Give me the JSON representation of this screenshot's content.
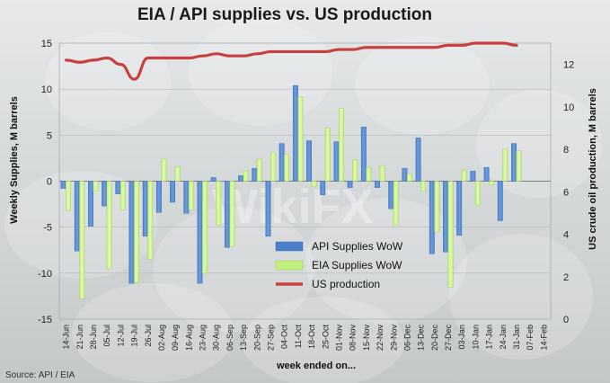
{
  "chart_data": {
    "type": "bar",
    "title": "EIA / API supplies vs. US production",
    "xlabel": "week ended on...",
    "ylabel_left": "Weekly Supplies, M barrels",
    "ylabel_right": "US crude oil production, M barrels",
    "ylim_left": [
      -15,
      15
    ],
    "ylim_right": [
      0,
      13
    ],
    "yticks_left": [
      "15",
      "10",
      "5",
      "0",
      "-5",
      "-10",
      "-15"
    ],
    "yticks_right": [
      "12",
      "10",
      "8",
      "6",
      "4",
      "2",
      "0"
    ],
    "source": "Source: API / EIA",
    "legend_position": "lower-center",
    "categories": [
      "14-Jun",
      "21-Jun",
      "28-Jun",
      "05-Jul",
      "12-Jul",
      "19-Jul",
      "26-Jul",
      "02-Aug",
      "09-Aug",
      "16-Aug",
      "23-Aug",
      "30-Aug",
      "06-Sep",
      "13-Sep",
      "20-Sep",
      "27-Sep",
      "04-Oct",
      "11-Oct",
      "18-Oct",
      "25-Oct",
      "01-Nov",
      "08-Nov",
      "15-Nov",
      "22-Nov",
      "29-Nov",
      "06-Dec",
      "13-Dec",
      "20-Dec",
      "27-Dec",
      "03-Jan",
      "10-Jan",
      "17-Jan",
      "24-Jan",
      "31-Jan",
      "07-Feb",
      "14-Feb"
    ],
    "series": [
      {
        "name": "API Supplies WoW",
        "kind": "bar",
        "color": "#4a7fc9",
        "values": [
          -0.8,
          -7.6,
          -4.9,
          -2.7,
          -1.4,
          -11.1,
          -6.0,
          -3.4,
          -2.3,
          -3.5,
          -11.1,
          0.4,
          -7.2,
          0.6,
          1.4,
          -6.0,
          4.1,
          10.4,
          4.4,
          -1.5,
          4.3,
          -0.7,
          5.9,
          -0.7,
          -3.0,
          1.4,
          4.7,
          -7.9,
          -7.7,
          -5.9,
          1.1,
          1.5,
          -4.3,
          4.1,
          null,
          null
        ]
      },
      {
        "name": "EIA Supplies WoW",
        "kind": "bar",
        "color": "#c2ef7c",
        "values": [
          -3.2,
          -12.8,
          -1.1,
          -9.5,
          -3.1,
          -11.0,
          -8.5,
          2.4,
          1.6,
          -3.1,
          -10.0,
          -4.8,
          -7.1,
          1.1,
          2.4,
          3.1,
          2.9,
          9.2,
          -0.6,
          5.8,
          7.9,
          2.3,
          1.5,
          1.7,
          -4.8,
          0.8,
          -1.1,
          -5.5,
          -11.5,
          1.2,
          -2.6,
          -0.4,
          3.5,
          3.3,
          null,
          null
        ]
      },
      {
        "name": "US production",
        "kind": "line",
        "axis": "right",
        "color": "#c8403f",
        "values": [
          12.2,
          12.1,
          12.2,
          12.3,
          12.0,
          11.3,
          12.3,
          12.3,
          12.3,
          12.3,
          12.4,
          12.5,
          12.4,
          12.4,
          12.5,
          12.6,
          12.6,
          12.6,
          12.6,
          12.6,
          12.7,
          12.7,
          12.8,
          12.8,
          12.8,
          12.8,
          12.8,
          12.8,
          12.9,
          12.9,
          13.0,
          13.0,
          13.0,
          12.9,
          null,
          null
        ]
      }
    ]
  },
  "watermark_text": "WikiFX"
}
